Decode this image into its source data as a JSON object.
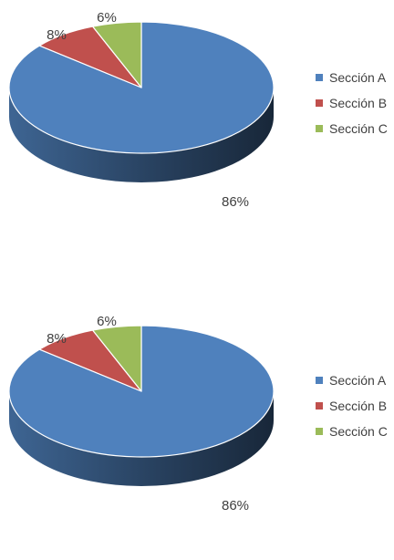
{
  "chart_data": [
    {
      "type": "pie",
      "categories": [
        "Sección A",
        "Sección B",
        "Sección C"
      ],
      "values": [
        86,
        8,
        6
      ],
      "labels": [
        "86%",
        "8%",
        "6%"
      ],
      "colors": [
        "#4F81BD",
        "#C0504D",
        "#9BBB59"
      ],
      "legend_position": "right",
      "style": "3d"
    },
    {
      "type": "pie",
      "categories": [
        "Sección A",
        "Sección B",
        "Sección C"
      ],
      "values": [
        86,
        8,
        6
      ],
      "labels": [
        "86%",
        "8%",
        "6%"
      ],
      "colors": [
        "#4F81BD",
        "#C0504D",
        "#9BBB59"
      ],
      "legend_position": "right",
      "style": "3d"
    }
  ]
}
